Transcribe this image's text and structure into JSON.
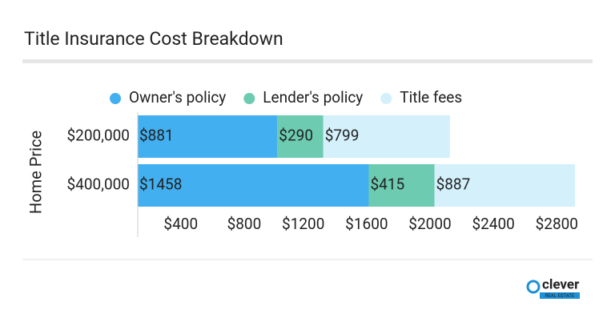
{
  "chart_data": {
    "type": "stacked-bar-horizontal",
    "title": "Title Insurance Cost Breakdown",
    "y_label": "Home Price",
    "categories": [
      "$200,000",
      "$400,000"
    ],
    "series": [
      {
        "name": "Owner's policy",
        "color": "#42aff0",
        "values": [
          881,
          1458
        ],
        "value_labels": [
          "$881",
          "$1458"
        ]
      },
      {
        "name": "Lender's policy",
        "color": "#6ccbb0",
        "values": [
          290,
          415
        ],
        "value_labels": [
          "$290",
          "$415"
        ]
      },
      {
        "name": "Title fees",
        "color": "#d4f0fb",
        "values": [
          799,
          887
        ],
        "value_labels": [
          "$799",
          "$887"
        ]
      }
    ],
    "xlim": [
      0,
      2800
    ],
    "xticks": [
      {
        "value": 400,
        "label": "$400"
      },
      {
        "value": 800,
        "label": "$800"
      },
      {
        "value": 1200,
        "label": "$1200"
      },
      {
        "value": 1600,
        "label": "$1600"
      },
      {
        "value": 2000,
        "label": "$2000"
      },
      {
        "value": 2400,
        "label": "$2400"
      },
      {
        "value": 2800,
        "label": "$2800"
      }
    ],
    "legend": "top"
  },
  "logo": {
    "name": "clever",
    "tagline": "REAL ESTATE"
  }
}
